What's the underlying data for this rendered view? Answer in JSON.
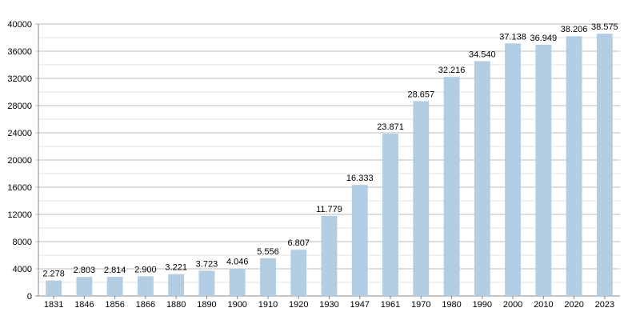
{
  "chart_data": {
    "type": "bar",
    "categories": [
      "1831",
      "1846",
      "1856",
      "1866",
      "1880",
      "1890",
      "1900",
      "1910",
      "1920",
      "1930",
      "1947",
      "1961",
      "1970",
      "1980",
      "1990",
      "2000",
      "2010",
      "2020",
      "2023"
    ],
    "values": [
      2278,
      2803,
      2814,
      2900,
      3221,
      3723,
      4046,
      5556,
      6807,
      11779,
      16333,
      23871,
      28657,
      32216,
      34540,
      37138,
      36949,
      38206,
      38575
    ],
    "data_labels": [
      "2.278",
      "2.803",
      "2.814",
      "2.900",
      "3.221",
      "3.723",
      "4.046",
      "5.556",
      "6.807",
      "11.779",
      "16.333",
      "23.871",
      "28.657",
      "32.216",
      "34.540",
      "37.138",
      "36.949",
      "38.206",
      "38.575"
    ],
    "title": "",
    "xlabel": "",
    "ylabel": "",
    "ylim": [
      0,
      40000
    ],
    "yticks": [
      0,
      4000,
      8000,
      12000,
      16000,
      20000,
      24000,
      28000,
      32000,
      36000,
      40000
    ],
    "ytick_labels": [
      "0",
      "4000",
      "8000",
      "12000",
      "16000",
      "20000",
      "24000",
      "28000",
      "32000",
      "36000",
      "40000"
    ],
    "grid": true,
    "legend": "none",
    "colors": {
      "bar": "#b3cde3",
      "grid_major": "#bbbbbb",
      "grid_minor": "#e3e3e3",
      "axis": "#888888"
    }
  }
}
